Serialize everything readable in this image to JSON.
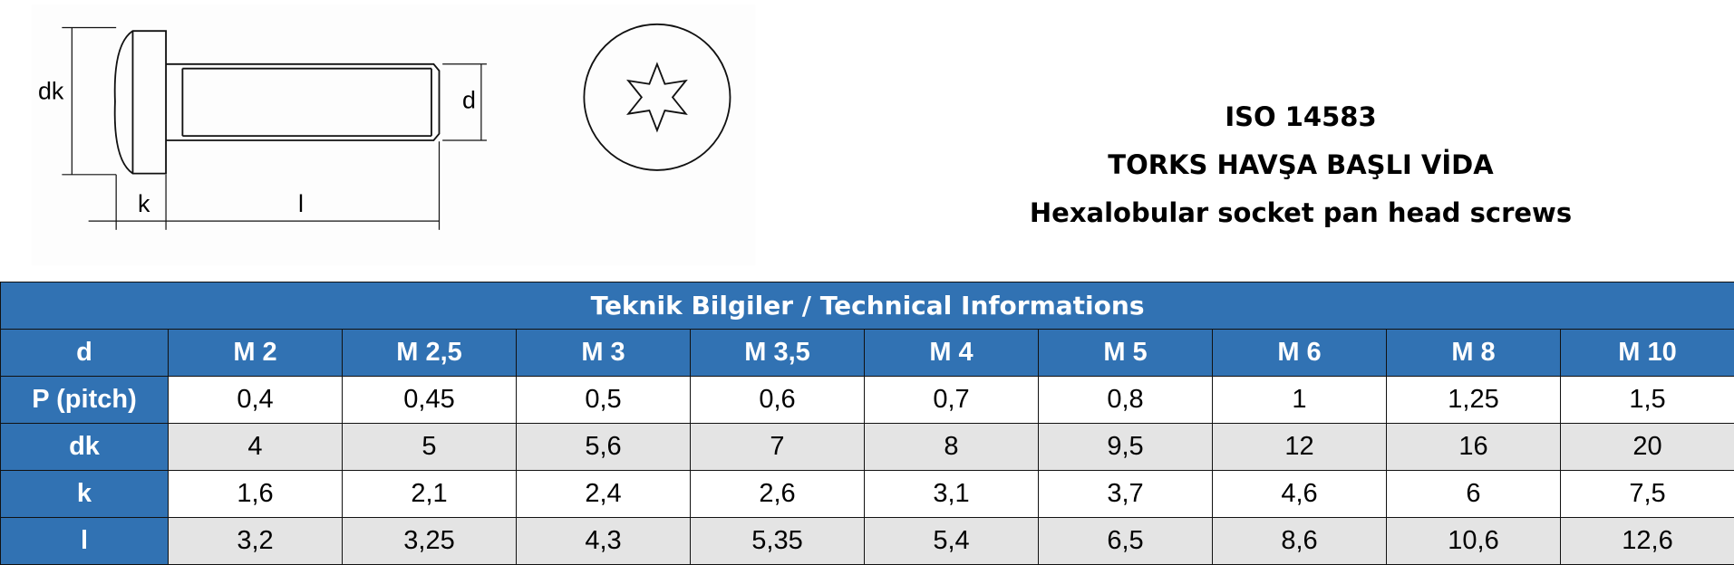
{
  "drawing": {
    "labels": {
      "dk": "dk",
      "k": "k",
      "l": "l",
      "d": "d"
    }
  },
  "header": {
    "lines": [
      "ISO 14583",
      "TORKS HAVŞA BAŞLI VİDA",
      "Hexalobular socket pan head screws"
    ]
  },
  "table": {
    "caption": "Teknik Bilgiler / Technical Informations",
    "header": [
      "d",
      "M 2",
      "M 2,5",
      "M 3",
      "M 3,5",
      "M 4",
      "M 5",
      "M 6",
      "M 8",
      "M 10"
    ],
    "rows": [
      [
        "P (pitch)",
        "0,4",
        "0,45",
        "0,5",
        "0,6",
        "0,7",
        "0,8",
        "1",
        "1,25",
        "1,5"
      ],
      [
        "dk",
        "4",
        "5",
        "5,6",
        "7",
        "8",
        "9,5",
        "12",
        "16",
        "20"
      ],
      [
        "k",
        "1,6",
        "2,1",
        "2,4",
        "2,6",
        "3,1",
        "3,7",
        "4,6",
        "6",
        "7,5"
      ],
      [
        "l",
        "3,2",
        "3,25",
        "4,3",
        "5,35",
        "5,4",
        "6,5",
        "8,6",
        "10,6",
        "12,6"
      ]
    ]
  }
}
